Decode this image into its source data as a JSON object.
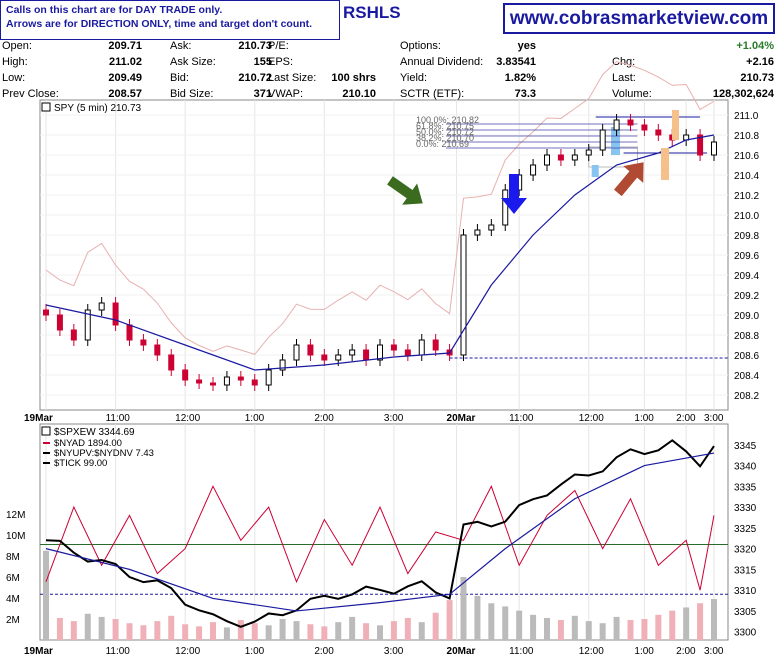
{
  "notice": {
    "line1": "Calls on this chart are for DAY TRADE only.",
    "line2": "Arrows are for DIRECTION ONLY, time and target don't count."
  },
  "ticker_fragment": "RSHLS",
  "site_banner": "www.cobrasmarketview.com",
  "quote": {
    "col1": [
      {
        "label": "Open:",
        "value": "209.71"
      },
      {
        "label": "High:",
        "value": "211.02"
      },
      {
        "label": "Low:",
        "value": "209.49"
      },
      {
        "label": "Prev Close:",
        "value": "208.57"
      }
    ],
    "col2": [
      {
        "label": "Ask:",
        "value": "210.73"
      },
      {
        "label": "Ask Size:",
        "value": "155"
      },
      {
        "label": "Bid:",
        "value": "210.72"
      },
      {
        "label": "Bid Size:",
        "value": "371"
      }
    ],
    "col3": [
      {
        "label": "P/E:",
        "value": ""
      },
      {
        "label": "EPS:",
        "value": ""
      },
      {
        "label": "Last Size:",
        "value": "100 shrs"
      },
      {
        "label": "VWAP:",
        "value": "210.10"
      }
    ],
    "col4": [
      {
        "label": "Options:",
        "value": "yes"
      },
      {
        "label": "Annual Dividend:",
        "value": "3.83541"
      },
      {
        "label": "Yield:",
        "value": "1.82%"
      },
      {
        "label": "SCTR (ETF):",
        "value": "73.3"
      }
    ],
    "col5": [
      {
        "label": "",
        "value": "+1.04%"
      },
      {
        "label": "Chg:",
        "value": "+2.16"
      },
      {
        "label": "Last:",
        "value": "210.73"
      },
      {
        "label": "Volume:",
        "value": "128,302,624"
      }
    ]
  },
  "colors": {
    "up_candle": "#000000",
    "down_candle": "#cc0033",
    "ma_line": "#1a1aa0",
    "env_line": "#e8b0b0",
    "arrow_green": "#3a6b1e",
    "arrow_blue": "#1a1aee",
    "arrow_red": "#b04a32",
    "bar_orange": "#f5c08a",
    "fib_box": "#88c4f0",
    "change_up": "#2a7a2a"
  },
  "chart_data": [
    {
      "type": "candlestick",
      "title": "SPY (5 min) 210.73",
      "y_ticks": [
        208.2,
        208.4,
        208.6,
        208.8,
        209.0,
        209.2,
        209.4,
        209.6,
        209.8,
        210.0,
        210.2,
        210.4,
        210.6,
        210.8,
        211.0
      ],
      "ylim": [
        208.05,
        211.15
      ],
      "x_ticks": [
        "19Mar",
        "11:00",
        "12:00",
        "1:00",
        "2:00",
        "3:00",
        "20Mar",
        "11:00",
        "12:00",
        "1:00",
        "2:00",
        "3:00"
      ],
      "prev_close": 208.57,
      "fib_levels": [
        {
          "label": "100.0%: 210.82",
          "value": 210.82
        },
        {
          "label": "61.8%: 210.75",
          "value": 210.75
        },
        {
          "label": "50.0%: 210.72",
          "value": 210.72
        },
        {
          "label": "38.2%: 210.70",
          "value": 210.7
        },
        {
          "label": "0.0%: 210.69",
          "value": 210.69
        }
      ],
      "close_path": [
        [
          0,
          209.0
        ],
        [
          1,
          208.85
        ],
        [
          2,
          208.75
        ],
        [
          3,
          209.05
        ],
        [
          4,
          209.12
        ],
        [
          5,
          208.9
        ],
        [
          6,
          208.75
        ],
        [
          7,
          208.7
        ],
        [
          8,
          208.6
        ],
        [
          9,
          208.45
        ],
        [
          10,
          208.35
        ],
        [
          11,
          208.32
        ],
        [
          12,
          208.3
        ],
        [
          13,
          208.38
        ],
        [
          14,
          208.35
        ],
        [
          15,
          208.3
        ],
        [
          16,
          208.45
        ],
        [
          17,
          208.55
        ],
        [
          18,
          208.7
        ],
        [
          19,
          208.6
        ],
        [
          20,
          208.55
        ],
        [
          21,
          208.6
        ],
        [
          22,
          208.65
        ],
        [
          23,
          208.55
        ],
        [
          24,
          208.7
        ],
        [
          25,
          208.65
        ],
        [
          26,
          208.6
        ],
        [
          27,
          208.75
        ],
        [
          28,
          208.65
        ],
        [
          29,
          208.6
        ],
        [
          30,
          209.8
        ],
        [
          31,
          209.85
        ],
        [
          32,
          209.9
        ],
        [
          33,
          210.25
        ],
        [
          34,
          210.4
        ],
        [
          35,
          210.5
        ],
        [
          36,
          210.6
        ],
        [
          37,
          210.55
        ],
        [
          38,
          210.6
        ],
        [
          39,
          210.65
        ],
        [
          40,
          210.85
        ],
        [
          41,
          210.95
        ],
        [
          42,
          210.9
        ],
        [
          43,
          210.85
        ],
        [
          44,
          210.8
        ],
        [
          45,
          210.75
        ],
        [
          46,
          210.8
        ],
        [
          47,
          210.6
        ],
        [
          48,
          210.73
        ]
      ],
      "ma_path": [
        [
          0,
          209.1
        ],
        [
          5,
          208.95
        ],
        [
          10,
          208.7
        ],
        [
          15,
          208.45
        ],
        [
          20,
          208.5
        ],
        [
          25,
          208.58
        ],
        [
          29,
          208.62
        ],
        [
          32,
          209.3
        ],
        [
          35,
          209.8
        ],
        [
          38,
          210.2
        ],
        [
          41,
          210.5
        ],
        [
          44,
          210.62
        ],
        [
          46,
          210.75
        ],
        [
          48,
          210.8
        ]
      ]
    },
    {
      "type": "line",
      "title": "$SPXEW 3344.69",
      "legend": [
        "$NYAD 1894.00",
        "$NYUPV:$NYDNV 7.43",
        "$TICK 99.00"
      ],
      "y_ticks_right": [
        3300,
        3305,
        3310,
        3315,
        3320,
        3325,
        3330,
        3335,
        3340,
        3345
      ],
      "y_ticks_left": [
        "2M",
        "4M",
        "6M",
        "8M",
        "10M",
        "12M"
      ],
      "x_ticks": [
        "19Mar",
        "11:00",
        "12:00",
        "1:00",
        "2:00",
        "3:00",
        "20Mar",
        "11:00",
        "12:00",
        "1:00",
        "2:00",
        "3:00"
      ],
      "ylim": [
        3298,
        3350
      ],
      "spxew_path": [
        [
          0,
          3322
        ],
        [
          3,
          3318
        ],
        [
          6,
          3314
        ],
        [
          9,
          3310
        ],
        [
          12,
          3303
        ],
        [
          15,
          3302
        ],
        [
          18,
          3306
        ],
        [
          21,
          3309
        ],
        [
          24,
          3310
        ],
        [
          27,
          3311
        ],
        [
          29,
          3309
        ],
        [
          30,
          3325
        ],
        [
          33,
          3327
        ],
        [
          36,
          3334
        ],
        [
          39,
          3338
        ],
        [
          42,
          3343
        ],
        [
          45,
          3345
        ],
        [
          47,
          3341
        ],
        [
          48,
          3344.7
        ]
      ],
      "ma_path": [
        [
          0,
          3320
        ],
        [
          6,
          3315
        ],
        [
          12,
          3308
        ],
        [
          18,
          3305
        ],
        [
          24,
          3307
        ],
        [
          29,
          3309
        ],
        [
          33,
          3320
        ],
        [
          38,
          3332
        ],
        [
          43,
          3340
        ],
        [
          48,
          3343
        ]
      ],
      "nyad_path": [
        [
          0,
          3312
        ],
        [
          2,
          3330
        ],
        [
          4,
          3316
        ],
        [
          6,
          3328
        ],
        [
          8,
          3314
        ],
        [
          10,
          3320
        ],
        [
          12,
          3335
        ],
        [
          14,
          3322
        ],
        [
          16,
          3330
        ],
        [
          18,
          3312
        ],
        [
          20,
          3327
        ],
        [
          22,
          3316
        ],
        [
          24,
          3330
        ],
        [
          26,
          3314
        ],
        [
          28,
          3324
        ],
        [
          30,
          3322
        ],
        [
          32,
          3335
        ],
        [
          34,
          3316
        ],
        [
          36,
          3328
        ],
        [
          38,
          3334
        ],
        [
          40,
          3320
        ],
        [
          42,
          3332
        ],
        [
          44,
          3316
        ],
        [
          46,
          3322
        ],
        [
          47,
          3310
        ],
        [
          48,
          3328
        ]
      ],
      "volume_millions": [
        8.5,
        2.1,
        1.8,
        2.5,
        2.2,
        2.0,
        1.6,
        1.4,
        1.8,
        2.3,
        1.5,
        1.3,
        1.7,
        1.2,
        1.9,
        1.6,
        1.4,
        2.0,
        1.8,
        1.5,
        1.3,
        1.7,
        2.2,
        1.6,
        1.4,
        1.8,
        2.1,
        1.7,
        2.6,
        3.8,
        6.0,
        4.2,
        3.5,
        3.2,
        2.8,
        2.4,
        2.1,
        1.9,
        2.3,
        1.8,
        1.6,
        2.2,
        1.9,
        2.0,
        2.4,
        2.8,
        3.1,
        3.5,
        3.9
      ],
      "hlines": [
        3321,
        3309
      ]
    }
  ]
}
